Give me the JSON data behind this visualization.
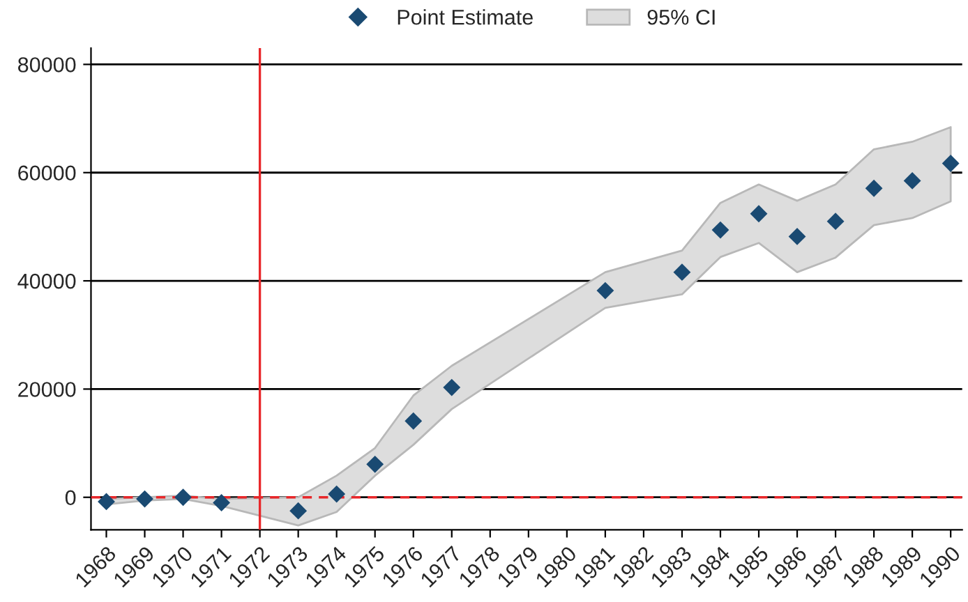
{
  "chart_data": {
    "type": "scatter",
    "series": [
      {
        "name": "Point Estimate",
        "color": "#1a4a72",
        "marker": "diamond",
        "x": [
          1968,
          1969,
          1970,
          1971,
          1973,
          1974,
          1975,
          1976,
          1977,
          1981,
          1983,
          1984,
          1985,
          1986,
          1987,
          1988,
          1989,
          1990
        ],
        "values": [
          -800,
          -300,
          0,
          -1000,
          -2500,
          600,
          6100,
          14100,
          20300,
          38200,
          41600,
          49400,
          52400,
          48200,
          51000,
          57100,
          58500,
          61700
        ]
      },
      {
        "name": "95% CI",
        "type": "area",
        "color": "#dddddd",
        "x": [
          1968,
          1969,
          1970,
          1971,
          1973,
          1974,
          1975,
          1976,
          1977,
          1981,
          1983,
          1984,
          1985,
          1986,
          1987,
          1988,
          1989,
          1990
        ],
        "values": [
          null,
          null,
          null,
          null,
          null,
          null,
          null,
          null,
          null,
          null,
          null,
          null,
          null,
          null,
          null,
          null,
          null,
          null
        ],
        "lower": [
          -1300,
          -600,
          -300,
          -1600,
          -5200,
          -2700,
          4000,
          9700,
          16300,
          35000,
          37500,
          44400,
          47000,
          41600,
          44300,
          50300,
          51600,
          54700
        ],
        "upper": [
          -300,
          0,
          300,
          -300,
          0,
          4000,
          9100,
          18800,
          24300,
          41600,
          45600,
          54400,
          57800,
          54800,
          57800,
          64300,
          65700,
          68400
        ]
      }
    ],
    "xlim": [
      1967.6,
      1990.3
    ],
    "xticks": [
      1968,
      1969,
      1970,
      1971,
      1972,
      1973,
      1974,
      1975,
      1976,
      1977,
      1978,
      1979,
      1980,
      1981,
      1982,
      1983,
      1984,
      1985,
      1986,
      1987,
      1988,
      1989,
      1990
    ],
    "ylim": [
      -6000,
      83000
    ],
    "yticks": [
      0,
      20000,
      40000,
      60000,
      80000
    ],
    "grid": "y",
    "legend": "top",
    "ref_lines": [
      {
        "axis": "x",
        "value": 1972,
        "color": "#e8272a",
        "line_style": "solid"
      },
      {
        "axis": "y",
        "value": 0,
        "color": "#e8272a",
        "line_style": "dashed"
      }
    ]
  }
}
